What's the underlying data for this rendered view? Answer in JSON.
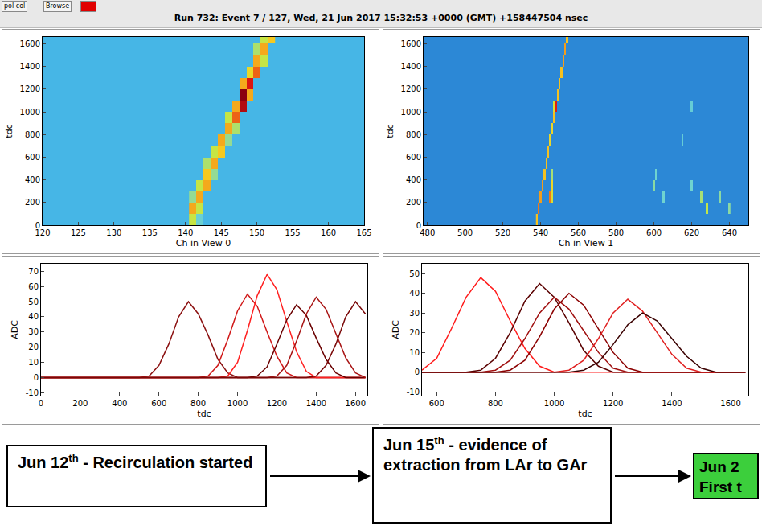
{
  "header": {
    "buttons": [
      "pol col",
      "Browse"
    ],
    "title": "Run 732: Event 7 / 127, Wed, 21 Jun 2017 15:32:53 +0000 (GMT) +158447504 nsec"
  },
  "chart_data": [
    {
      "type": "heatmap",
      "xlabel": "Ch in View 0",
      "ylabel": "tdc",
      "xlim": [
        120,
        165
      ],
      "xticks": [
        120,
        125,
        130,
        135,
        140,
        145,
        150,
        155,
        160,
        165
      ],
      "ylim": [
        0,
        1660
      ],
      "yticks": [
        0,
        200,
        400,
        600,
        800,
        1000,
        1200,
        1400,
        1600
      ],
      "zlim": [
        0,
        90
      ],
      "cells": {
        "x": [
          141,
          142,
          141,
          142,
          142,
          141,
          143,
          142,
          143,
          144,
          144,
          143,
          145,
          144,
          145,
          146,
          146,
          147,
          147,
          146,
          148,
          147,
          148,
          149,
          149,
          148,
          150,
          149,
          150,
          151,
          151,
          150,
          152,
          151
        ],
        "y": [
          50,
          50,
          150,
          150,
          250,
          250,
          350,
          350,
          450,
          450,
          550,
          550,
          650,
          650,
          750,
          750,
          850,
          850,
          950,
          950,
          1050,
          1050,
          1150,
          1150,
          1250,
          1250,
          1350,
          1350,
          1450,
          1450,
          1550,
          1550,
          1650,
          1650
        ],
        "z": [
          40,
          20,
          60,
          40,
          60,
          30,
          60,
          40,
          55,
          30,
          60,
          35,
          55,
          40,
          60,
          30,
          60,
          35,
          70,
          40,
          85,
          60,
          90,
          60,
          80,
          60,
          70,
          50,
          60,
          40,
          60,
          35,
          55,
          40
        ]
      }
    },
    {
      "type": "heatmap",
      "xlabel": "Ch in View 1",
      "ylabel": "tdc",
      "xlim": [
        478,
        650
      ],
      "xticks": [
        480,
        500,
        520,
        540,
        560,
        580,
        600,
        620,
        640
      ],
      "ylim": [
        0,
        1660
      ],
      "yticks": [
        0,
        200,
        400,
        600,
        800,
        1000,
        1200,
        1400,
        1600
      ],
      "zlim": [
        0,
        80
      ],
      "cells": {
        "x": [
          538,
          539,
          540,
          545,
          546,
          541,
          546,
          542,
          546,
          543,
          544,
          545,
          546,
          547,
          548,
          547,
          549,
          550,
          551,
          552,
          553,
          554,
          600,
          601,
          605,
          620,
          625,
          628,
          635,
          640,
          615,
          620
        ],
        "y": [
          50,
          150,
          250,
          250,
          250,
          350,
          350,
          450,
          450,
          550,
          650,
          750,
          850,
          950,
          1050,
          1050,
          1150,
          1250,
          1350,
          1450,
          1550,
          1650,
          350,
          450,
          250,
          350,
          250,
          150,
          250,
          150,
          750,
          1050
        ],
        "z": [
          50,
          60,
          55,
          60,
          40,
          55,
          45,
          50,
          30,
          50,
          50,
          45,
          45,
          50,
          70,
          40,
          50,
          50,
          50,
          55,
          55,
          50,
          25,
          20,
          20,
          20,
          30,
          35,
          25,
          25,
          15,
          15
        ]
      }
    },
    {
      "type": "line",
      "xlabel": "tdc",
      "ylabel": "ADC",
      "xlim": [
        0,
        1660
      ],
      "xticks": [
        0,
        200,
        400,
        600,
        800,
        1000,
        1200,
        1400,
        1600
      ],
      "ylim": [
        -12,
        75
      ],
      "yticks": [
        -10,
        0,
        10,
        20,
        30,
        40,
        50,
        60,
        70
      ],
      "x": [
        0,
        50,
        100,
        150,
        200,
        250,
        300,
        350,
        400,
        450,
        500,
        550,
        600,
        650,
        700,
        750,
        800,
        850,
        900,
        950,
        1000,
        1050,
        1100,
        1150,
        1200,
        1250,
        1300,
        1350,
        1400,
        1450,
        1500,
        1550,
        1600,
        1650
      ],
      "series": [
        {
          "color": "#8b1010",
          "values": [
            0,
            0,
            0,
            0,
            0,
            0,
            0,
            0,
            0,
            0,
            0,
            1,
            8,
            22,
            40,
            50,
            42,
            28,
            12,
            3,
            0,
            0,
            0,
            0,
            0,
            0,
            0,
            0,
            0,
            0,
            0,
            0,
            0,
            0
          ]
        },
        {
          "color": "#d01818",
          "values": [
            0,
            0,
            0,
            0,
            0,
            0,
            0,
            0,
            0,
            0,
            0,
            0,
            0,
            0,
            0,
            0,
            0,
            1,
            8,
            25,
            44,
            55,
            47,
            30,
            14,
            3,
            0,
            0,
            0,
            0,
            0,
            0,
            0,
            0
          ]
        },
        {
          "color": "#ff2020",
          "values": [
            0,
            0,
            0,
            0,
            0,
            0,
            0,
            0,
            0,
            0,
            0,
            0,
            0,
            0,
            0,
            0,
            0,
            0,
            0,
            1,
            10,
            31,
            54,
            68,
            58,
            37,
            17,
            4,
            0,
            0,
            0,
            0,
            0,
            0
          ]
        },
        {
          "color": "#6a0000",
          "values": [
            0,
            0,
            0,
            0,
            0,
            0,
            0,
            0,
            0,
            0,
            0,
            0,
            0,
            0,
            0,
            0,
            0,
            0,
            0,
            0,
            0,
            0,
            1,
            7,
            22,
            38,
            48,
            41,
            26,
            12,
            3,
            0,
            0,
            0
          ]
        },
        {
          "color": "#a81414",
          "values": [
            0,
            0,
            0,
            0,
            0,
            0,
            0,
            0,
            0,
            0,
            0,
            0,
            0,
            0,
            0,
            0,
            0,
            0,
            0,
            0,
            0,
            0,
            0,
            0,
            1,
            8,
            24,
            42,
            53,
            45,
            29,
            13,
            3,
            0
          ]
        },
        {
          "color": "#7a0808",
          "values": [
            0,
            0,
            0,
            0,
            0,
            0,
            0,
            0,
            0,
            0,
            0,
            0,
            0,
            0,
            0,
            0,
            0,
            0,
            0,
            0,
            0,
            0,
            0,
            0,
            0,
            0,
            0,
            0,
            1,
            8,
            22,
            40,
            50,
            42
          ]
        }
      ]
    },
    {
      "type": "line",
      "xlabel": "tdc",
      "ylabel": "ADC",
      "xlim": [
        550,
        1660
      ],
      "xticks": [
        600,
        800,
        1000,
        1200,
        1400,
        1600
      ],
      "ylim": [
        -12,
        55
      ],
      "yticks": [
        -10,
        0,
        10,
        20,
        30,
        40,
        50
      ],
      "x": [
        550,
        600,
        650,
        700,
        750,
        800,
        850,
        900,
        950,
        1000,
        1050,
        1100,
        1150,
        1200,
        1250,
        1300,
        1350,
        1400,
        1450,
        1500,
        1550,
        1600,
        1650
      ],
      "series": [
        {
          "color": "#ff1a1a",
          "values": [
            1,
            7,
            22,
            38,
            48,
            41,
            26,
            12,
            3,
            0,
            0,
            0,
            0,
            0,
            0,
            0,
            0,
            0,
            0,
            0,
            0,
            0,
            0
          ]
        },
        {
          "color": "#5a0000",
          "values": [
            0,
            0,
            0,
            0,
            1,
            7,
            20,
            36,
            45,
            38,
            25,
            11,
            3,
            0,
            0,
            0,
            0,
            0,
            0,
            0,
            0,
            0,
            0
          ]
        },
        {
          "color": "#a01010",
          "values": [
            0,
            0,
            0,
            0,
            0,
            1,
            6,
            17,
            30,
            38,
            32,
            21,
            10,
            2,
            0,
            0,
            0,
            0,
            0,
            0,
            0,
            0,
            0
          ]
        },
        {
          "color": "#8b0000",
          "values": [
            0,
            0,
            0,
            0,
            0,
            0,
            1,
            6,
            18,
            32,
            40,
            34,
            22,
            10,
            2,
            0,
            0,
            0,
            0,
            0,
            0,
            0,
            0
          ]
        },
        {
          "color": "#e02020",
          "values": [
            0,
            0,
            0,
            0,
            0,
            0,
            0,
            0,
            0,
            0,
            1,
            6,
            17,
            30,
            37,
            31,
            20,
            9,
            2,
            0,
            0,
            0,
            0
          ]
        },
        {
          "color": "#3a0000",
          "values": [
            0,
            0,
            0,
            0,
            0,
            0,
            0,
            0,
            0,
            0,
            0,
            1,
            5,
            14,
            24,
            30,
            26,
            17,
            8,
            2,
            0,
            0,
            0
          ]
        }
      ]
    }
  ],
  "timeline": [
    {
      "date": "Jun 12",
      "suffix": "th",
      "text": " - Recirculation started"
    },
    {
      "date": "Jun 15",
      "suffix": "th",
      "text": " - evidence of extraction from LAr to GAr"
    },
    {
      "lines": [
        "Jun 2",
        "First t"
      ]
    }
  ]
}
